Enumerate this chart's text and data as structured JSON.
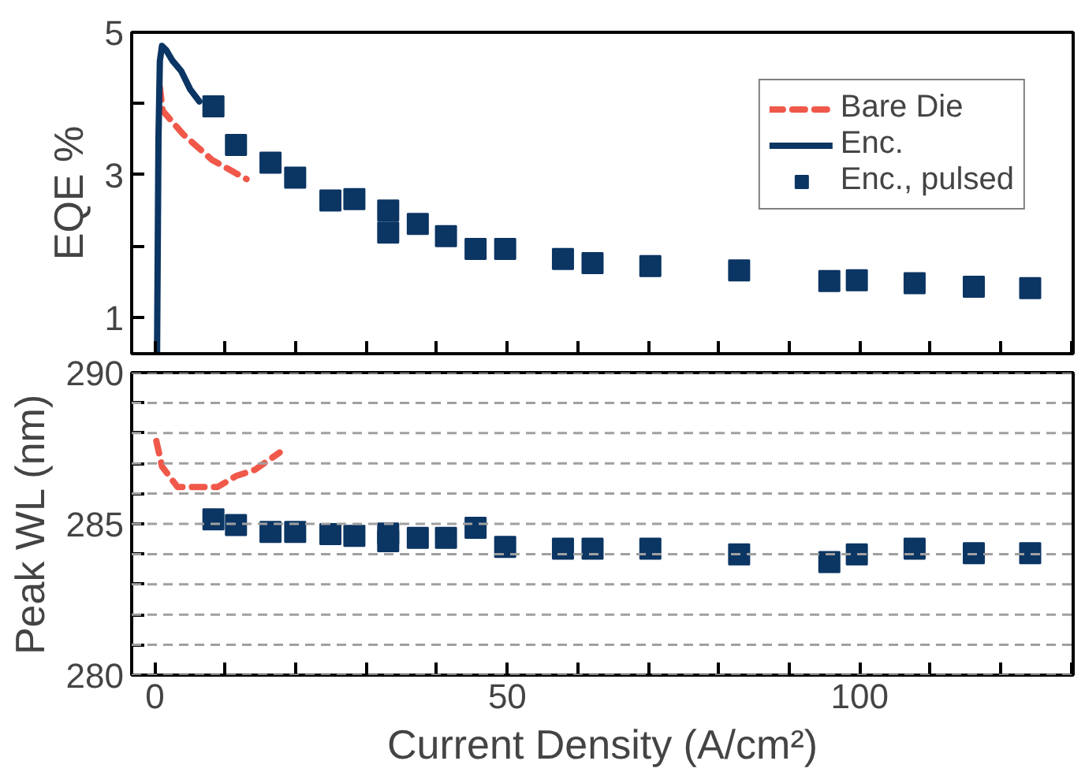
{
  "chart_data": [
    {
      "type": "line",
      "ylabel": "EQE %",
      "xlim": [
        -3.3,
        130.3
      ],
      "ylim": [
        0.49,
        5
      ],
      "xticks": [
        0,
        {
          "value": 10,
          "label": null
        },
        {
          "value": 20,
          "label": null
        },
        {
          "value": 30,
          "label": null
        },
        {
          "value": 40,
          "label": null
        },
        50,
        {
          "value": 60,
          "label": null
        },
        {
          "value": 70,
          "label": null
        },
        {
          "value": 80,
          "label": null
        },
        {
          "value": 90,
          "label": null
        },
        100,
        {
          "value": 110,
          "label": null
        },
        {
          "value": 120,
          "label": null
        },
        {
          "value": 130,
          "label": null
        }
      ],
      "yticks": [
        1,
        {
          "value": 2,
          "label": null
        },
        3,
        {
          "value": 4,
          "label": null
        },
        5
      ],
      "tick_labels": "y",
      "grid": false,
      "legend": "top right",
      "series": [
        {
          "name": "Bare Die",
          "line_style": "dashed",
          "color": "#f0584a",
          "x": [
            0.7,
            1.1,
            4.0,
            8.1,
            13.0
          ],
          "values": [
            4.23,
            3.9,
            3.57,
            3.21,
            2.94
          ]
        },
        {
          "name": "Enc.",
          "line_style": "solid",
          "color": "#0b3563",
          "x": [
            0.3,
            0.5,
            0.7,
            1.0,
            1.6,
            2.5,
            3.7,
            5.0,
            6.3
          ],
          "values": [
            0.5,
            3.5,
            4.6,
            4.81,
            4.75,
            4.6,
            4.46,
            4.2,
            4.03
          ]
        },
        {
          "name": "Enc., pulsed",
          "type": "scatter",
          "marker": "square",
          "color": "#0b3563",
          "x": [
            8.3,
            11.5,
            16.4,
            19.9,
            24.9,
            28.3,
            33.1,
            33.1,
            37.3,
            41.3,
            45.5,
            49.7,
            57.9,
            62.1,
            70.3,
            82.9,
            95.7,
            99.6,
            107.8,
            116.2,
            124.2
          ],
          "values": [
            3.96,
            3.42,
            3.17,
            2.96,
            2.64,
            2.66,
            2.5,
            2.19,
            2.31,
            2.14,
            1.96,
            1.96,
            1.82,
            1.76,
            1.72,
            1.66,
            1.51,
            1.52,
            1.48,
            1.43,
            1.41
          ]
        }
      ]
    },
    {
      "type": "line",
      "ylabel": "Peak WL (nm)",
      "xlabel": "Current Density (A/cm²)",
      "xlim": [
        -3.3,
        130.3
      ],
      "ylim": [
        280,
        290
      ],
      "xticks": [
        0,
        {
          "value": 10,
          "label": null
        },
        {
          "value": 20,
          "label": null
        },
        {
          "value": 30,
          "label": null
        },
        {
          "value": 40,
          "label": null
        },
        50,
        {
          "value": 60,
          "label": null
        },
        {
          "value": 70,
          "label": null
        },
        {
          "value": 80,
          "label": null
        },
        {
          "value": 90,
          "label": null
        },
        100,
        {
          "value": 110,
          "label": null
        },
        {
          "value": 120,
          "label": null
        },
        {
          "value": 130,
          "label": null
        }
      ],
      "yticks": [
        280,
        {
          "value": 281,
          "label": null
        },
        {
          "value": 282,
          "label": null
        },
        {
          "value": 283,
          "label": null
        },
        {
          "value": 284,
          "label": null
        },
        285,
        {
          "value": 286,
          "label": null
        },
        {
          "value": 287,
          "label": null
        },
        {
          "value": 288,
          "label": null
        },
        {
          "value": 289,
          "label": null
        },
        290
      ],
      "grid": "y",
      "series": [
        {
          "line_style": "dashed",
          "color": "#f0584a",
          "x": [
            0.2,
            1.0,
            3.2,
            6.3,
            8.9,
            11.5,
            14.2,
            17.7
          ],
          "values": [
            287.74,
            286.9,
            286.22,
            286.22,
            286.22,
            286.58,
            286.79,
            287.36
          ]
        },
        {
          "type": "scatter",
          "marker": "square",
          "color": "#0b3563",
          "x": [
            8.3,
            11.5,
            16.4,
            19.9,
            24.9,
            28.3,
            33.1,
            33.1,
            37.3,
            41.3,
            45.5,
            49.7,
            57.9,
            62.1,
            70.3,
            82.9,
            95.7,
            99.6,
            107.8,
            116.2,
            124.2
          ],
          "values": [
            285.15,
            284.96,
            284.73,
            284.73,
            284.66,
            284.6,
            284.68,
            284.43,
            284.54,
            284.54,
            284.87,
            284.24,
            284.18,
            284.18,
            284.18,
            283.99,
            283.74,
            283.99,
            284.18,
            284.03,
            284.03
          ]
        }
      ]
    }
  ]
}
